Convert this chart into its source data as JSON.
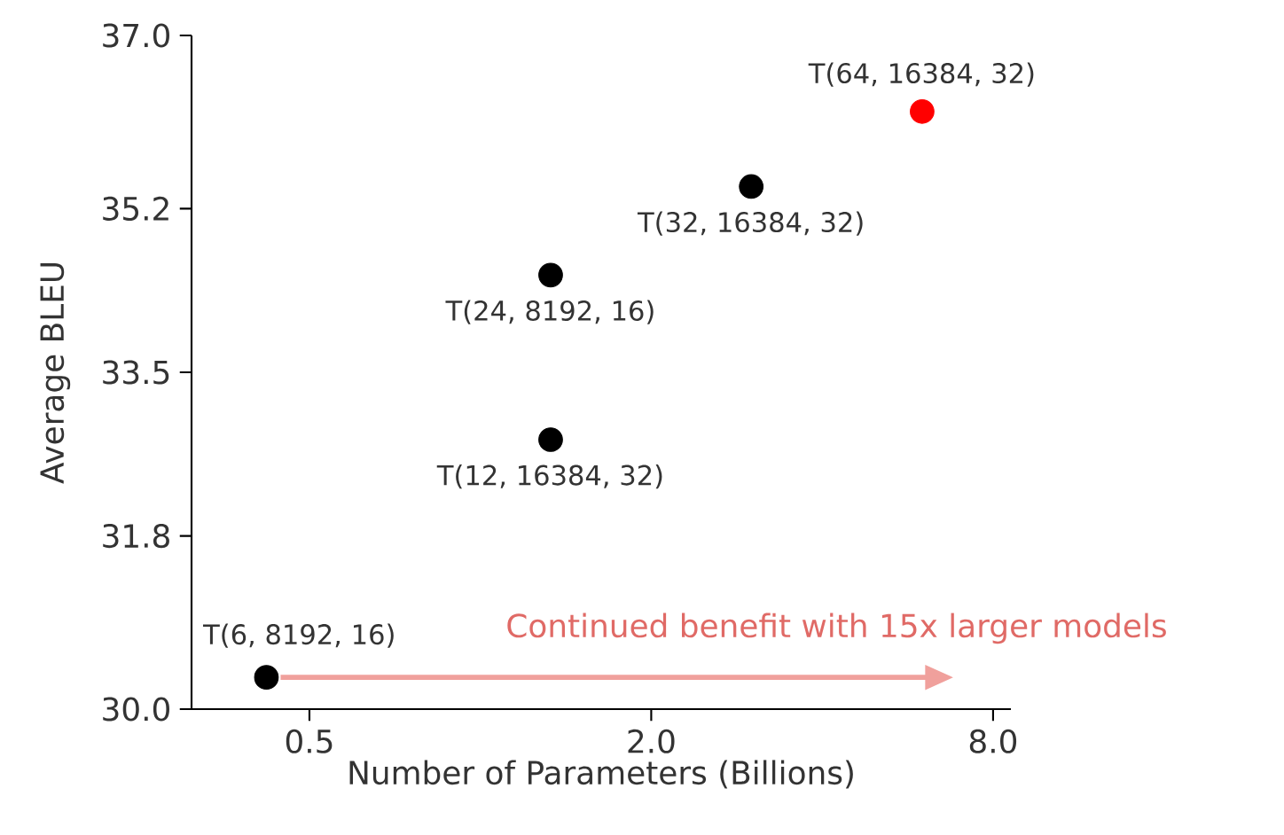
{
  "chart_data": {
    "type": "scatter",
    "xlabel": "Number of Parameters (Billions)",
    "ylabel": "Average BLEU",
    "x": [
      0.42,
      1.33,
      1.33,
      3.0,
      6.0
    ],
    "values": [
      30.33,
      34.51,
      32.8,
      35.43,
      36.21
    ],
    "colors": [
      "#000000",
      "#000000",
      "#000000",
      "#000000",
      "#ff0000"
    ],
    "log": "x",
    "grid": false,
    "xlim": [
      0.31,
      8.6
    ],
    "ylim": [
      30.0,
      37.0
    ],
    "xticks": [
      {
        "value": 0.5,
        "label": "0.5"
      },
      {
        "value": 2,
        "label": "2.0"
      },
      {
        "value": 8,
        "label": "8.0"
      }
    ],
    "yticks": [
      {
        "value": 30.0,
        "label": "30.0"
      },
      {
        "value": 31.8,
        "label": "31.8"
      },
      {
        "value": 33.5,
        "label": "33.5"
      },
      {
        "value": 35.2,
        "label": "35.2"
      },
      {
        "value": 37.0,
        "label": "37.0"
      }
    ],
    "annotations": [
      {
        "text": "T(6, 8192, 16)",
        "x": 0.42,
        "y": 30.33
      },
      {
        "text": "T(12, 16384, 32)",
        "x": 1.33,
        "y": 32.8
      },
      {
        "text": "T(24, 8192, 16)",
        "x": 1.33,
        "y": 34.51
      },
      {
        "text": "T(32, 16384, 32)",
        "x": 3.0,
        "y": 35.43
      },
      {
        "text": "T(64, 16384, 32)",
        "x": 6.0,
        "y": 36.21
      },
      {
        "text": "Continued benefit with 15x larger models",
        "x": 0.42,
        "y": 30.33
      }
    ]
  }
}
